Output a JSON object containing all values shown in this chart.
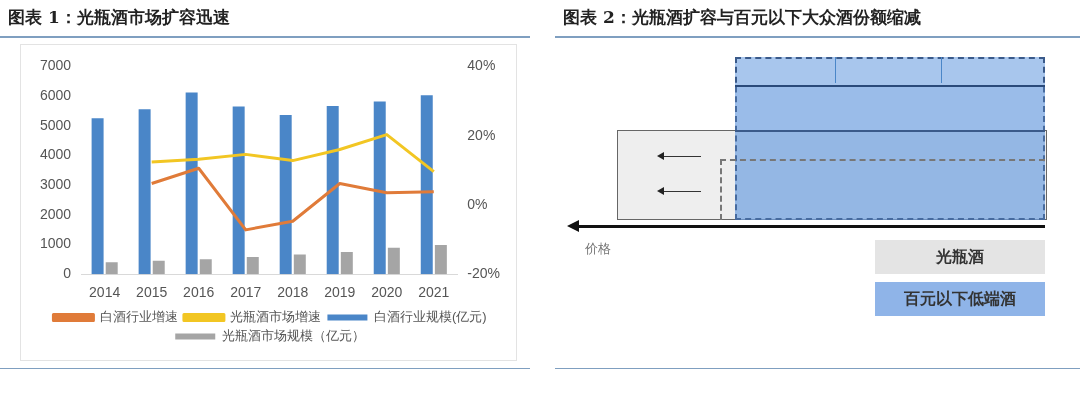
{
  "chart_data": [
    {
      "type": "bar",
      "title": "图表 1：光瓶酒市场扩容迅速",
      "categories": [
        "2014",
        "2015",
        "2016",
        "2017",
        "2018",
        "2019",
        "2020",
        "2021"
      ],
      "series": [
        {
          "name": "白酒行业规模(亿元)",
          "color": "#4a86c8",
          "values": [
            5250,
            5560,
            6125,
            5650,
            5360,
            5670,
            5820,
            6030
          ]
        },
        {
          "name": "光瓶酒市场规模（亿元）",
          "color": "#a5a5a5",
          "values": [
            400,
            450,
            500,
            580,
            660,
            750,
            890,
            985
          ]
        },
        {
          "name": "白酒行业增速",
          "color": "#e07b39",
          "type": "line",
          "axis": "y2",
          "values": [
            null,
            6.2,
            10.6,
            -7.2,
            -4.7,
            6.2,
            3.5,
            3.8
          ]
        },
        {
          "name": "光瓶酒市场增速",
          "color": "#f2c623",
          "type": "line",
          "axis": "y2",
          "values": [
            null,
            12.4,
            13.2,
            14.6,
            12.8,
            16,
            20.3,
            9.6
          ]
        }
      ],
      "ylim": [
        0,
        7000
      ],
      "yticks": [
        0,
        1000,
        2000,
        3000,
        4000,
        5000,
        6000,
        7000
      ],
      "y2lim": [
        -20,
        40
      ],
      "y2ticks": [
        {
          "value": -20,
          "label": "-20%"
        },
        {
          "value": 0,
          "label": "0%"
        },
        {
          "value": 20,
          "label": "20%"
        },
        {
          "value": 40,
          "label": "40%"
        }
      ],
      "legend": "bottom",
      "marker": "none"
    },
    {
      "type": "other",
      "title": "图表 2：光瓶酒扩容与百元以下大众酒份额缩减",
      "annotations": [
        "价格",
        "光瓶酒",
        "百元以下低端酒"
      ]
    }
  ]
}
